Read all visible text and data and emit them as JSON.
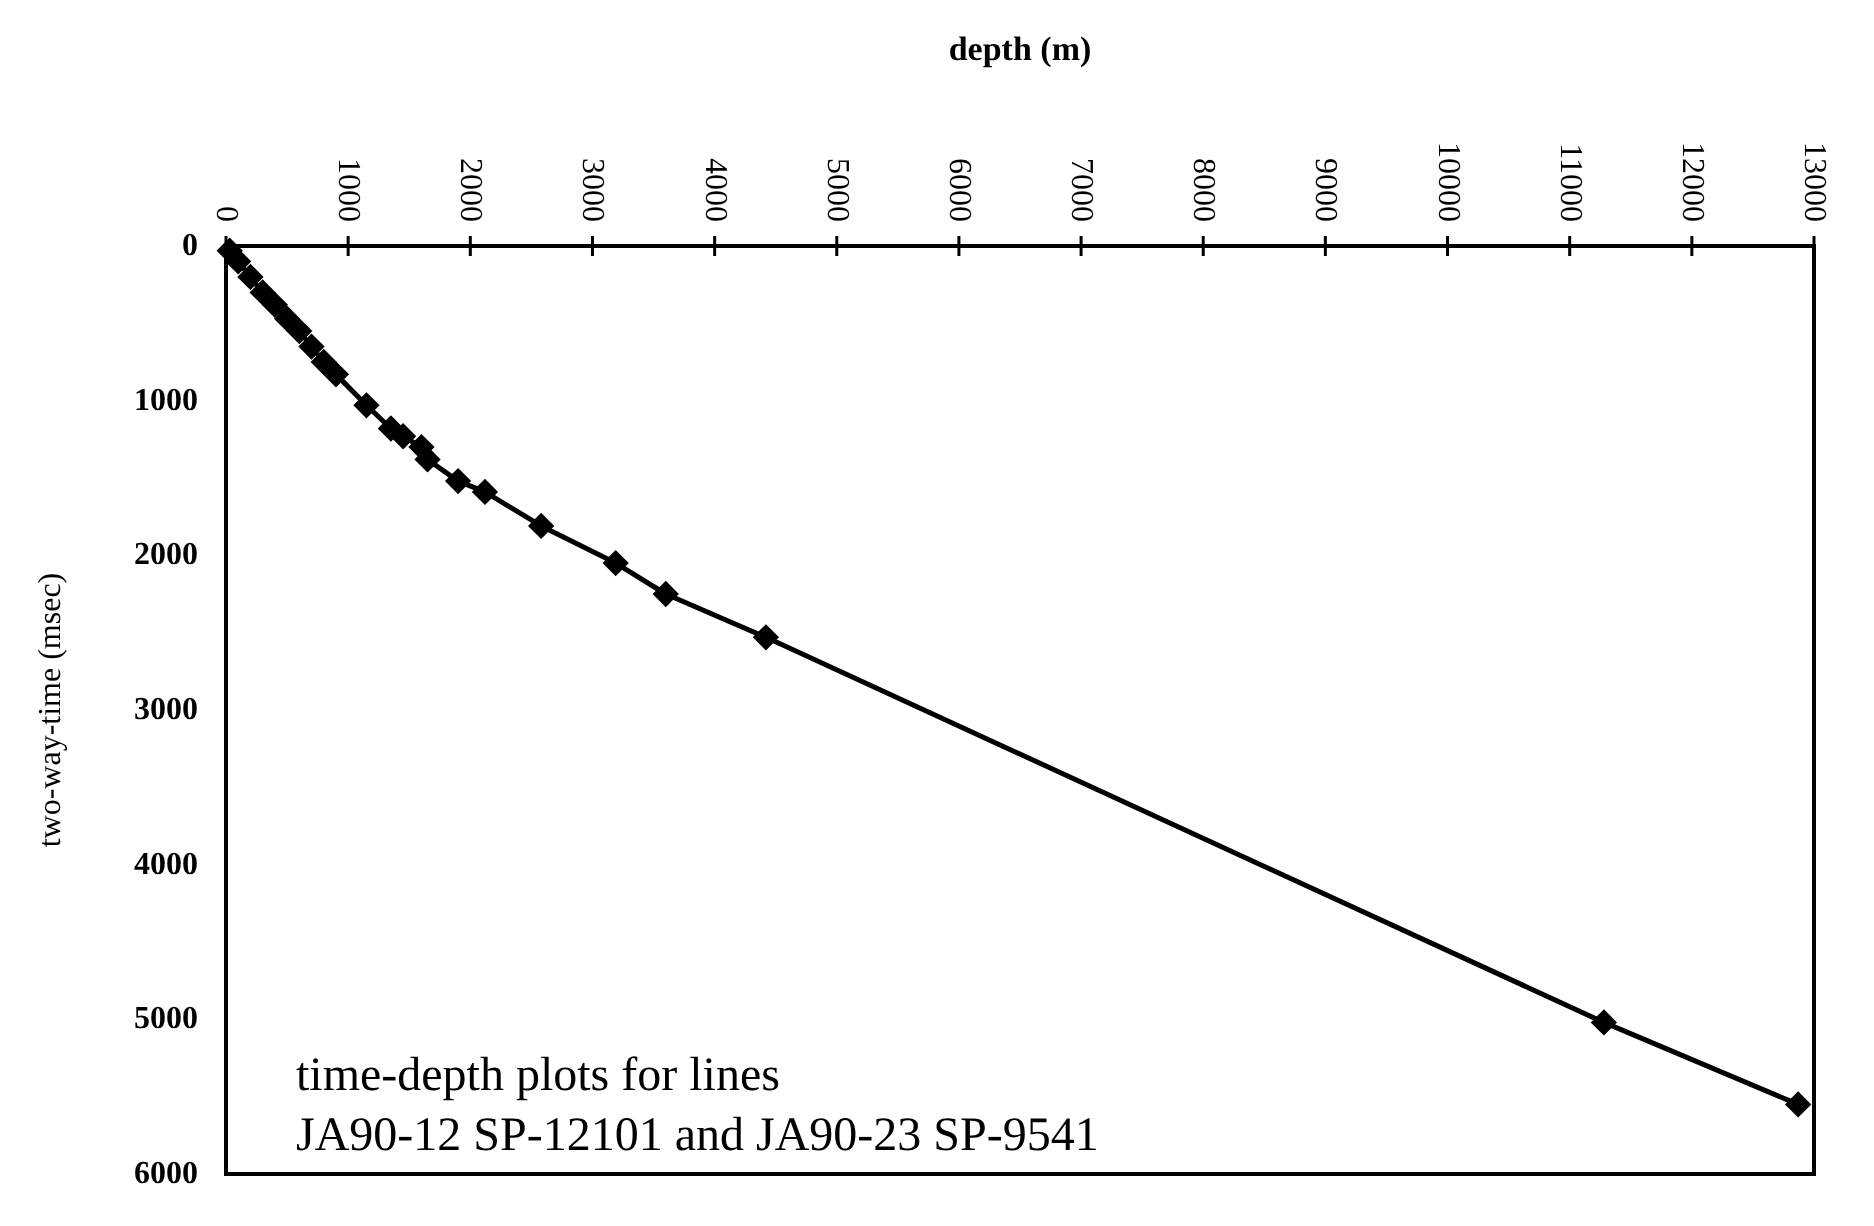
{
  "chart_data": {
    "type": "line",
    "xlabel": "depth (m)",
    "ylabel": "two-way-time (msec)",
    "annotations": [
      "time-depth plots for lines",
      "JA90-12 SP-12101 and JA90-23 SP-9541"
    ],
    "xlim": [
      0,
      13000
    ],
    "xticks": [
      0,
      1000,
      2000,
      3000,
      4000,
      5000,
      6000,
      7000,
      8000,
      9000,
      10000,
      11000,
      12000,
      13000
    ],
    "ylim": [
      6000,
      0
    ],
    "yticks": [
      0,
      1000,
      2000,
      3000,
      4000,
      5000,
      6000
    ],
    "marker": "diamond",
    "line_style": "solid",
    "series": [
      {
        "color": "#000000",
        "x": [
          30,
          100,
          200,
          300,
          400,
          500,
          600,
          700,
          800,
          900,
          1150,
          1350,
          1450,
          1600,
          1650,
          1900,
          2120,
          2580,
          3190,
          3600,
          4420,
          11280,
          12870
        ],
        "values": [
          30,
          100,
          200,
          300,
          380,
          470,
          550,
          650,
          750,
          830,
          1030,
          1180,
          1230,
          1300,
          1380,
          1520,
          1590,
          1810,
          2050,
          2250,
          2530,
          5020,
          5550
        ]
      }
    ]
  }
}
